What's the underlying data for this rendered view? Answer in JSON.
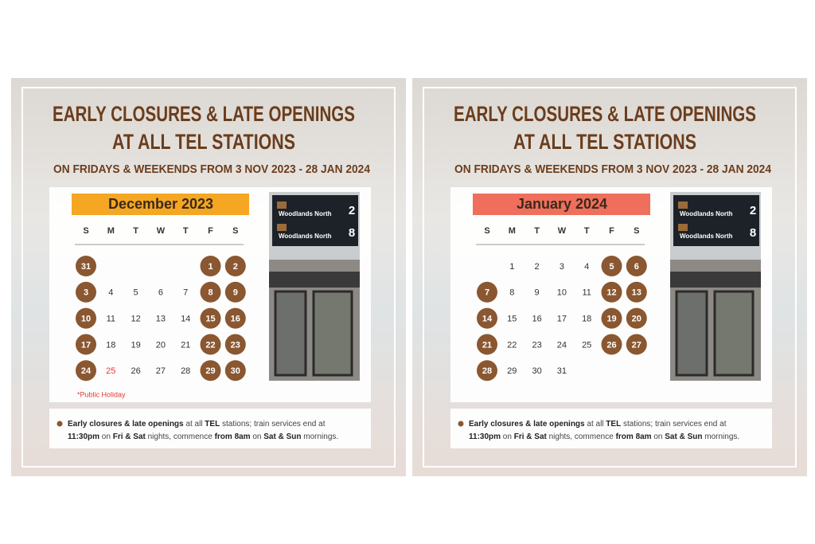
{
  "panels": [
    {
      "title": [
        "EARLY CLOSURES & LATE OPENINGS",
        "AT ALL TEL STATIONS"
      ],
      "subtitle": "ON FRIDAYS & WEEKENDS FROM 3 NOV 2023 - 28 JAN 2024",
      "month": "December 2023",
      "header_color": "#f5a623",
      "weekdays": [
        "S",
        "M",
        "T",
        "W",
        "T",
        "F",
        "S"
      ],
      "weeks": [
        [
          {
            "day": "31",
            "style": "circled"
          },
          null,
          null,
          null,
          null,
          {
            "day": "1",
            "style": "circled"
          },
          {
            "day": "2",
            "style": "circled"
          }
        ],
        [
          {
            "day": "3",
            "style": "circled"
          },
          {
            "day": "4",
            "style": "plain"
          },
          {
            "day": "5",
            "style": "plain"
          },
          {
            "day": "6",
            "style": "plain"
          },
          {
            "day": "7",
            "style": "plain"
          },
          {
            "day": "8",
            "style": "circled"
          },
          {
            "day": "9",
            "style": "circled"
          }
        ],
        [
          {
            "day": "10",
            "style": "circled"
          },
          {
            "day": "11",
            "style": "plain"
          },
          {
            "day": "12",
            "style": "plain"
          },
          {
            "day": "13",
            "style": "plain"
          },
          {
            "day": "14",
            "style": "plain"
          },
          {
            "day": "15",
            "style": "circled"
          },
          {
            "day": "16",
            "style": "circled"
          }
        ],
        [
          {
            "day": "17",
            "style": "circled"
          },
          {
            "day": "18",
            "style": "plain"
          },
          {
            "day": "19",
            "style": "plain"
          },
          {
            "day": "20",
            "style": "plain"
          },
          {
            "day": "21",
            "style": "plain"
          },
          {
            "day": "22",
            "style": "circled"
          },
          {
            "day": "23",
            "style": "circled"
          }
        ],
        [
          {
            "day": "24",
            "style": "circled"
          },
          {
            "day": "25",
            "style": "holiday"
          },
          {
            "day": "26",
            "style": "plain"
          },
          {
            "day": "27",
            "style": "plain"
          },
          {
            "day": "28",
            "style": "plain"
          },
          {
            "day": "29",
            "style": "circled"
          },
          {
            "day": "30",
            "style": "circled"
          }
        ]
      ],
      "footnote": "*Public Holiday",
      "photo": {
        "signs": [
          {
            "station": "Woodlands North",
            "number": "2"
          },
          {
            "station": "Woodlands North",
            "number": "8"
          }
        ]
      },
      "note_lines": [
        [
          {
            "text": "Early closures & late openings",
            "bold": true
          },
          {
            "text": " at all ",
            "bold": false
          },
          {
            "text": "TEL",
            "bold": true
          },
          {
            "text": " stations; train services end at",
            "bold": false
          }
        ],
        [
          {
            "text": "11:30pm",
            "bold": true
          },
          {
            "text": " on ",
            "bold": false
          },
          {
            "text": "Fri & Sat",
            "bold": true
          },
          {
            "text": " nights, commence ",
            "bold": false
          },
          {
            "text": "from 8am",
            "bold": true
          },
          {
            "text": " on ",
            "bold": false
          },
          {
            "text": "Sat & Sun",
            "bold": true
          },
          {
            "text": " mornings.",
            "bold": false
          }
        ]
      ]
    },
    {
      "title": [
        "EARLY CLOSURES & LATE OPENINGS",
        "AT ALL TEL STATIONS"
      ],
      "subtitle": "ON FRIDAYS & WEEKENDS FROM 3 NOV 2023 - 28 JAN 2024",
      "month": "January 2024",
      "header_color": "#ef6f5c",
      "weekdays": [
        "S",
        "M",
        "T",
        "W",
        "T",
        "F",
        "S"
      ],
      "weeks": [
        [
          null,
          {
            "day": "1",
            "style": "plain"
          },
          {
            "day": "2",
            "style": "plain"
          },
          {
            "day": "3",
            "style": "plain"
          },
          {
            "day": "4",
            "style": "plain"
          },
          {
            "day": "5",
            "style": "circled"
          },
          {
            "day": "6",
            "style": "circled"
          }
        ],
        [
          {
            "day": "7",
            "style": "circled"
          },
          {
            "day": "8",
            "style": "plain"
          },
          {
            "day": "9",
            "style": "plain"
          },
          {
            "day": "10",
            "style": "plain"
          },
          {
            "day": "11",
            "style": "plain"
          },
          {
            "day": "12",
            "style": "circled"
          },
          {
            "day": "13",
            "style": "circled"
          }
        ],
        [
          {
            "day": "14",
            "style": "circled"
          },
          {
            "day": "15",
            "style": "plain"
          },
          {
            "day": "16",
            "style": "plain"
          },
          {
            "day": "17",
            "style": "plain"
          },
          {
            "day": "18",
            "style": "plain"
          },
          {
            "day": "19",
            "style": "circled"
          },
          {
            "day": "20",
            "style": "circled"
          }
        ],
        [
          {
            "day": "21",
            "style": "circled"
          },
          {
            "day": "22",
            "style": "plain"
          },
          {
            "day": "23",
            "style": "plain"
          },
          {
            "day": "24",
            "style": "plain"
          },
          {
            "day": "25",
            "style": "plain"
          },
          {
            "day": "26",
            "style": "circled"
          },
          {
            "day": "27",
            "style": "circled"
          }
        ],
        [
          {
            "day": "28",
            "style": "circled"
          },
          {
            "day": "29",
            "style": "plain"
          },
          {
            "day": "30",
            "style": "plain"
          },
          {
            "day": "31",
            "style": "plain"
          },
          null,
          null,
          null
        ]
      ],
      "photo": {
        "signs": [
          {
            "station": "Woodlands North",
            "number": "2"
          },
          {
            "station": "Woodlands North",
            "number": "8"
          }
        ]
      },
      "note_lines": [
        [
          {
            "text": "Early closures & late openings",
            "bold": true
          },
          {
            "text": " at all ",
            "bold": false
          },
          {
            "text": "TEL",
            "bold": true
          },
          {
            "text": " stations; train services end at",
            "bold": false
          }
        ],
        [
          {
            "text": "11:30pm",
            "bold": true
          },
          {
            "text": " on ",
            "bold": false
          },
          {
            "text": "Fri & Sat",
            "bold": true
          },
          {
            "text": " nights, commence ",
            "bold": false
          },
          {
            "text": "from 8am",
            "bold": true
          },
          {
            "text": " on ",
            "bold": false
          },
          {
            "text": "Sat & Sun",
            "bold": true
          },
          {
            "text": " mornings.",
            "bold": false
          }
        ]
      ]
    }
  ]
}
